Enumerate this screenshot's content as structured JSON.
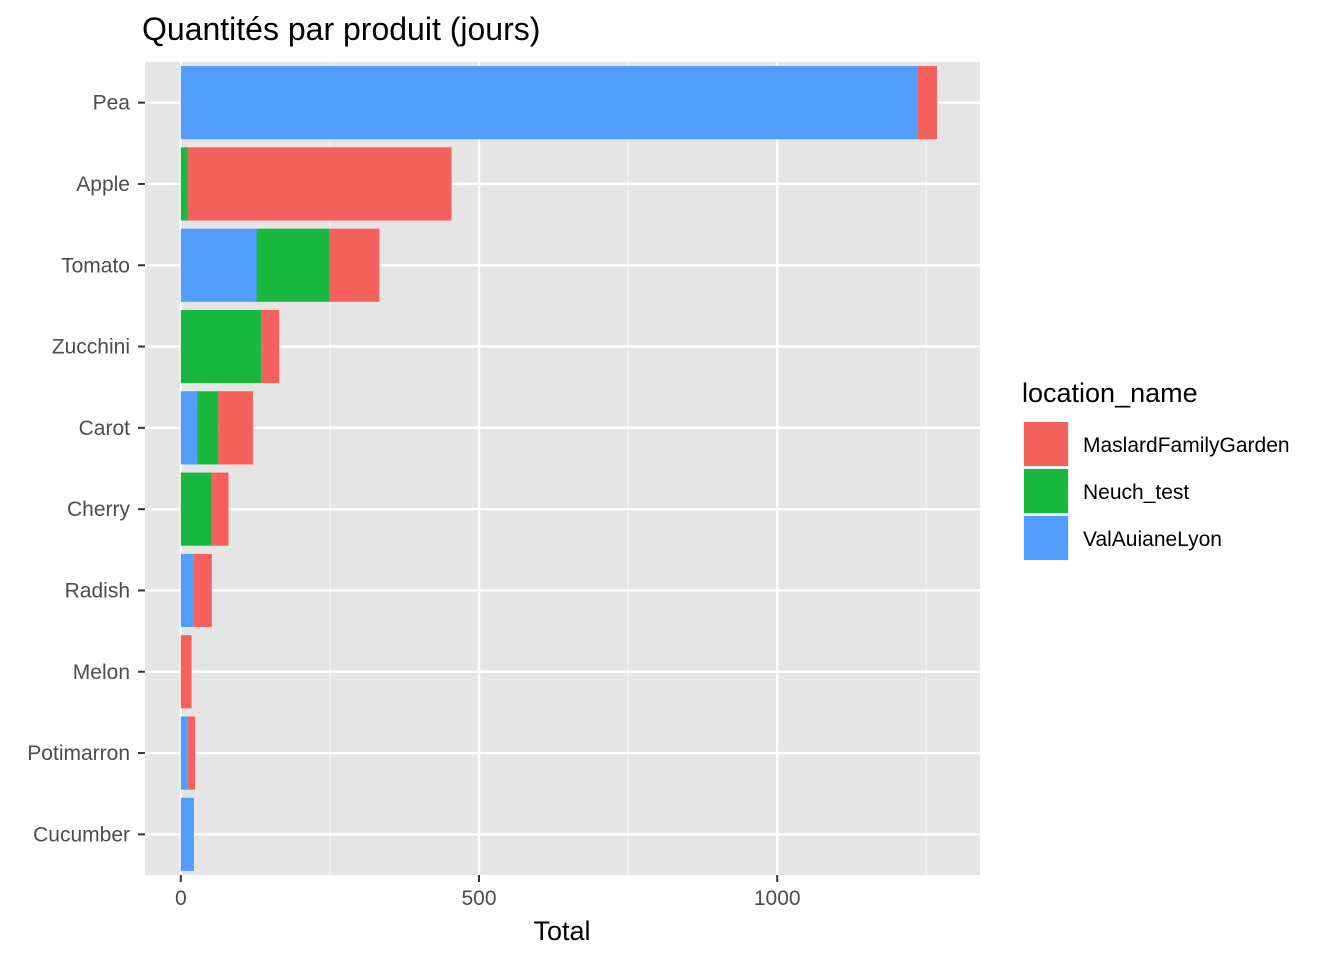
{
  "chart_data": {
    "type": "bar",
    "orientation": "horizontal",
    "stacked": true,
    "title": "Quantités par produit (jours)",
    "xlabel": "Total",
    "ylabel": "",
    "xlim": [
      -60,
      1340
    ],
    "xticks": [
      0,
      500,
      1000
    ],
    "grid": true,
    "legend": {
      "title": "location_name",
      "placement": "right"
    },
    "categories": [
      "Pea",
      "Apple",
      "Tomato",
      "Zucchini",
      "Carot",
      "Cherry",
      "Radish",
      "Melon",
      "Potimarron",
      "Cucumber"
    ],
    "series": [
      {
        "name": "ValAuianeLyon",
        "color": "#529EFF",
        "values": [
          1235,
          0,
          127,
          0,
          28,
          0,
          22,
          0,
          12,
          22
        ]
      },
      {
        "name": "Neuch_test",
        "color": "#1BB840",
        "values": [
          0,
          12,
          123,
          135,
          35,
          52,
          0,
          0,
          0,
          0
        ]
      },
      {
        "name": "MaslardFamilyGarden",
        "color": "#F5625D",
        "values": [
          33,
          442,
          83,
          30,
          58,
          28,
          30,
          18,
          12,
          0
        ]
      }
    ],
    "legend_order": [
      "MaslardFamilyGarden",
      "Neuch_test",
      "ValAuianeLyon"
    ]
  }
}
